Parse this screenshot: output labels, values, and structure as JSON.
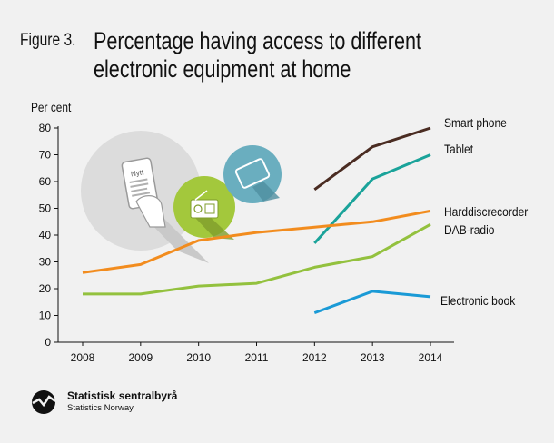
{
  "figure_label": "Figure 3.",
  "logo": {
    "name": "Statistisk sentralbyrå",
    "subtitle": "Statistics Norway"
  },
  "illustration": {
    "phone_text": "Nytt"
  },
  "chart_data": {
    "type": "line",
    "title": "Percentage having access to different electronic equipment at home",
    "ylabel": "Per cent",
    "xlabel": "",
    "x": [
      2008,
      2009,
      2010,
      2011,
      2012,
      2013,
      2014
    ],
    "ylim": [
      0,
      80
    ],
    "yticks": [
      0,
      10,
      20,
      30,
      40,
      50,
      60,
      70,
      80
    ],
    "grid": false,
    "legend": "inline-right",
    "series": [
      {
        "name": "Smart phone",
        "color": "#4a2c22",
        "values": [
          null,
          null,
          null,
          null,
          57,
          73,
          80
        ]
      },
      {
        "name": "Tablet",
        "color": "#1aa39a",
        "values": [
          null,
          null,
          null,
          null,
          37,
          61,
          70
        ]
      },
      {
        "name": "Harddiscrecorder",
        "color": "#f28c1e",
        "values": [
          26,
          29,
          38,
          41,
          43,
          45,
          49
        ]
      },
      {
        "name": "DAB-radio",
        "color": "#93c13e",
        "values": [
          18,
          18,
          21,
          22,
          28,
          32,
          44
        ]
      },
      {
        "name": "Electronic book",
        "color": "#1a9ad6",
        "values": [
          null,
          null,
          null,
          null,
          11,
          19,
          17
        ]
      }
    ]
  }
}
